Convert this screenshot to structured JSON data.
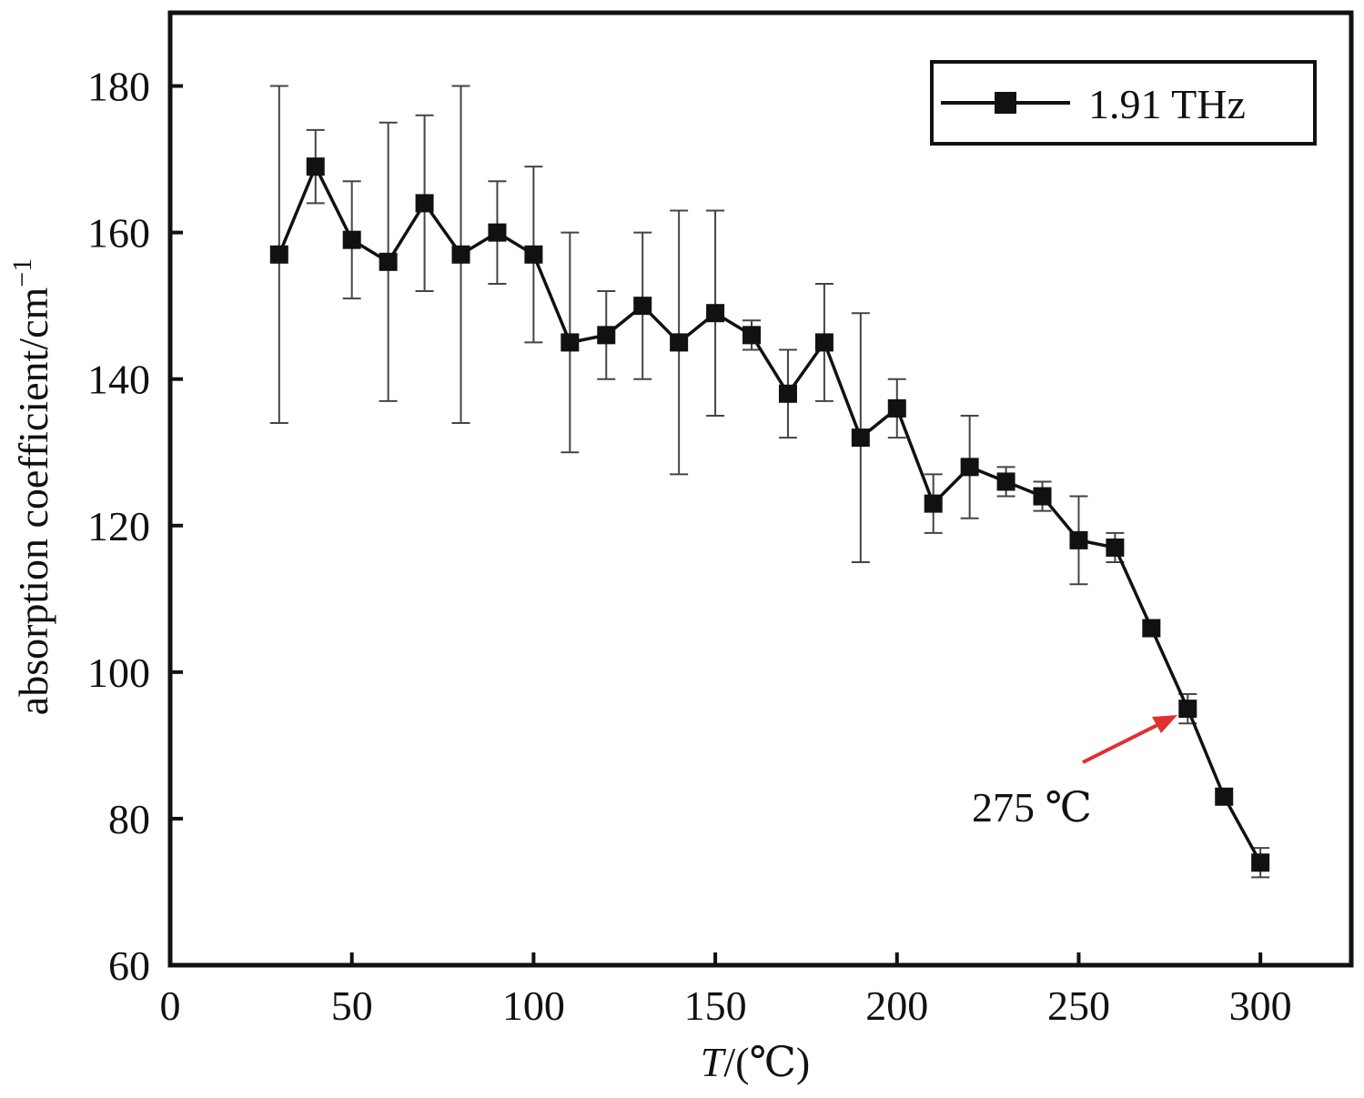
{
  "chart_data": {
    "type": "line",
    "title": "",
    "xlabel_italic": "T",
    "xlabel_rest": "/(℃)",
    "ylabel": "absorption coefficient/cm",
    "ylabel_sup": "−1",
    "xlim": [
      0,
      325
    ],
    "ylim": [
      60,
      190
    ],
    "xticks": [
      0,
      50,
      100,
      150,
      200,
      250,
      300
    ],
    "yticks": [
      60,
      80,
      100,
      120,
      140,
      160,
      180
    ],
    "grid": false,
    "legend_position": "top-right",
    "series": [
      {
        "name": "1.91 THz",
        "color": "#111111",
        "marker": "square",
        "x": [
          30,
          40,
          50,
          60,
          70,
          80,
          90,
          100,
          110,
          120,
          130,
          140,
          150,
          160,
          170,
          180,
          190,
          200,
          210,
          220,
          230,
          240,
          250,
          260,
          270,
          280,
          290,
          300
        ],
        "y": [
          157,
          169,
          159,
          156,
          164,
          157,
          160,
          157,
          145,
          146,
          150,
          145,
          149,
          146,
          138,
          145,
          132,
          136,
          123,
          128,
          126,
          124,
          118,
          117,
          106,
          95,
          83,
          74
        ],
        "err_low": [
          134,
          164,
          151,
          137,
          152,
          134,
          153,
          145,
          130,
          140,
          140,
          127,
          135,
          144,
          132,
          137,
          115,
          132,
          119,
          121,
          124,
          122,
          112,
          115,
          106,
          93,
          83,
          72
        ],
        "err_high": [
          180,
          174,
          167,
          175,
          176,
          180,
          167,
          169,
          160,
          152,
          160,
          163,
          163,
          148,
          144,
          153,
          149,
          140,
          127,
          135,
          128,
          126,
          124,
          119,
          106,
          97,
          83,
          76
        ]
      }
    ],
    "annotations": [
      {
        "text": "275 ℃",
        "arrow_to_x": 280,
        "arrow_color": "#e03030"
      }
    ]
  }
}
